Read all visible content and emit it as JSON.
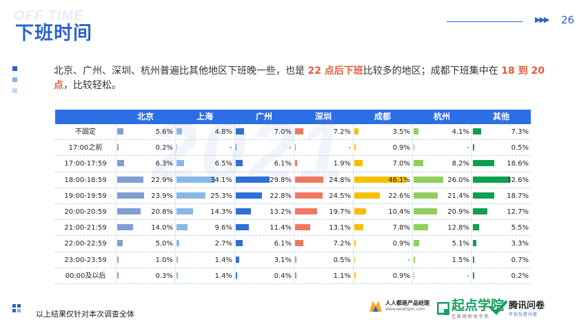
{
  "header": {
    "bg_word": "OFF TIME",
    "title": "下班时间",
    "arrows": "▶▶▶",
    "page_number": "26"
  },
  "summary": {
    "part1": "北京、广州、深圳、杭州普遍比其他地区下班晚一些，也是 ",
    "highlight1": "22 点后下班",
    "part2": "比较多的地区；成都下班集中在 ",
    "highlight2": "18 到 20 点",
    "part3": "，比较轻松。"
  },
  "colors": {
    "header_bg": "#2c6ee6",
    "city_colors": [
      "#7f9fd1",
      "#86b9e8",
      "#2f6fd8",
      "#f07860",
      "#f5c000",
      "#8fcf5a",
      "#0da04e"
    ]
  },
  "chart_data": {
    "type": "table",
    "columns": [
      "北京",
      "上海",
      "广州",
      "深圳",
      "成都",
      "杭州",
      "其他"
    ],
    "rows": [
      {
        "label": "不固定",
        "values": [
          "5.6%",
          "4.8%",
          "7.0%",
          "7.2%",
          "3.5%",
          "4.1%",
          "7.3%"
        ]
      },
      {
        "label": "17:00之前",
        "values": [
          "0.2%",
          "-",
          "-",
          "-",
          "0.9%",
          "-",
          "0.5%"
        ]
      },
      {
        "label": "17:00-17:59",
        "values": [
          "6.3%",
          "6.5%",
          "6.1%",
          "1.9%",
          "7.0%",
          "8.2%",
          "18.6%"
        ]
      },
      {
        "label": "18:00-18:59",
        "values": [
          "22.9%",
          "34.1%",
          "29.8%",
          "24.8%",
          "46.1%",
          "26.0%",
          "32.6%"
        ]
      },
      {
        "label": "19:00-19:59",
        "values": [
          "23.9%",
          "25.3%",
          "22.8%",
          "24.5%",
          "22.6%",
          "21.4%",
          "18.7%"
        ]
      },
      {
        "label": "20:00-20:59",
        "values": [
          "20.8%",
          "14.3%",
          "13.2%",
          "19.7%",
          "10.4%",
          "20.9%",
          "12.7%"
        ]
      },
      {
        "label": "21:00-21:59",
        "values": [
          "14.0%",
          "9.6%",
          "11.4%",
          "13.1%",
          "7.8%",
          "12.8%",
          "5.5%"
        ]
      },
      {
        "label": "22:00-22:59",
        "values": [
          "5.0%",
          "2.7%",
          "6.1%",
          "7.2%",
          "0.9%",
          "5.1%",
          "3.3%"
        ]
      },
      {
        "label": "23:00-23:59",
        "values": [
          "1.0%",
          "1.4%",
          "3.1%",
          "0.5%",
          "-",
          "1.5%",
          "0.7%"
        ]
      },
      {
        "label": "00:00及以后",
        "values": [
          "0.3%",
          "1.4%",
          "0.4%",
          "1.1%",
          "0.9%",
          "-",
          "0.2%"
        ]
      }
    ],
    "bar_max": 46.1
  },
  "footer": {
    "note": "以上结果仅针对本次调查全体",
    "logo_a_main": "人人都是产品经理",
    "logo_a_sub": "www.woshipm.com",
    "logo_b_main": "起点学院",
    "logo_b_sub": "互 联 网 职 场 学 院",
    "logo_c_main": "腾讯问卷",
    "logo_c_sub": "不仅仅是问卷"
  }
}
